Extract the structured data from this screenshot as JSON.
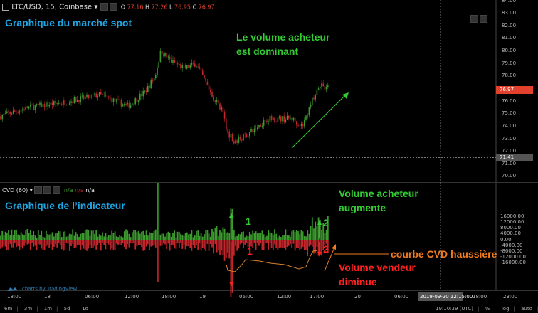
{
  "header": {
    "symbol": "LTC/USD, 15, Coinbase",
    "ohlc": {
      "o_label": "O",
      "o": "77.16",
      "h_label": "H",
      "h": "77.26",
      "l_label": "L",
      "l": "76.95",
      "c_label": "C",
      "c": "76.97"
    }
  },
  "indicator_header": {
    "name": "CVD (60)",
    "v1": "n/a",
    "v2": "n/a",
    "v3": "n/a"
  },
  "price_axis": {
    "ticks": [
      "84.00",
      "83.00",
      "82.00",
      "81.00",
      "80.00",
      "79.00",
      "78.00",
      "76.00",
      "75.00",
      "74.00",
      "73.00",
      "72.00",
      "71.00",
      "70.00"
    ],
    "last_price": "76.97",
    "crosshair_price": "71.41"
  },
  "cvd_axis": {
    "ticks": [
      "16000.00",
      "12000.00",
      "8000.00",
      "4000.00",
      "0.00",
      "-4000.00",
      "-8000.00",
      "-12000.00",
      "-16000.00"
    ]
  },
  "time_axis": {
    "ticks": [
      "18:00",
      "18",
      "06:00",
      "12:00",
      "18:00",
      "19",
      "06:00",
      "12:00",
      "17:00",
      "20",
      "06:00",
      "18:00",
      "23:00"
    ],
    "crosshair_time": "2019-09-20 12:15:00"
  },
  "footer": {
    "ranges": [
      "6m",
      "3m",
      "1m",
      "5d",
      "1d"
    ],
    "clock": "19:10:39 (UTC)",
    "pct": "%",
    "log": "log",
    "auto": "auto"
  },
  "branding": {
    "text": "charts by TradingView"
  },
  "annotations": {
    "spot_title": "Graphique du marché spot",
    "indicator_title": "Graphique de l’indicateur",
    "buyer_dominant_1": "Le volume acheteur",
    "buyer_dominant_2": "est dominant",
    "buyer_up_1": "Volume acheteur",
    "buyer_up_2": "augmente",
    "seller_down_1": "Volume vendeur",
    "seller_down_2": "diminue",
    "cvd_bullish": "courbe CVD haussière",
    "marker_1": "1",
    "marker_2": "2"
  },
  "colors": {
    "up": "#3c9a2e",
    "down": "#c0262a",
    "last_price_bg": "#e2412e",
    "cvd_line": "#d9822b",
    "title_blue": "#1ea7e4",
    "green_text": "#33cc33",
    "red_text": "#ff2020",
    "orange_text": "#f07a1e"
  }
}
